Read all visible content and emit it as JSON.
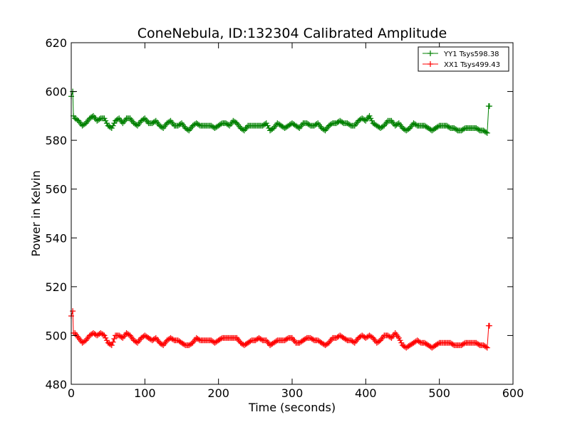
{
  "chart_data": {
    "type": "line",
    "title": "ConeNebula, ID:132304 Calibrated Amplitude",
    "xlabel": "Time (seconds)",
    "ylabel": "Power in Kelvin",
    "xlim": [
      0,
      600
    ],
    "ylim": [
      480,
      620
    ],
    "xticks": [
      "0",
      "100",
      "200",
      "300",
      "400",
      "500",
      "600"
    ],
    "yticks": [
      "480",
      "500",
      "520",
      "540",
      "560",
      "580",
      "600",
      "620"
    ],
    "grid": false,
    "legend_position": "top-right",
    "series": [
      {
        "name": "YY1 Tsys598.38",
        "color": "#008000",
        "marker": "+",
        "baseline": 586.5,
        "start_spike": 600,
        "end_spike": 594,
        "x": [
          0,
          2,
          3,
          5,
          10,
          15,
          20,
          25,
          30,
          35,
          40,
          45,
          50,
          55,
          60,
          65,
          70,
          75,
          80,
          85,
          90,
          95,
          100,
          105,
          110,
          115,
          120,
          125,
          130,
          135,
          140,
          145,
          150,
          155,
          160,
          165,
          170,
          175,
          180,
          185,
          190,
          195,
          200,
          205,
          210,
          215,
          220,
          225,
          230,
          235,
          240,
          245,
          250,
          255,
          260,
          265,
          270,
          275,
          280,
          285,
          290,
          295,
          300,
          305,
          310,
          315,
          320,
          325,
          330,
          335,
          340,
          345,
          350,
          355,
          360,
          365,
          370,
          375,
          380,
          385,
          390,
          395,
          400,
          405,
          410,
          415,
          420,
          425,
          430,
          435,
          440,
          445,
          450,
          455,
          460,
          465,
          470,
          475,
          480,
          485,
          490,
          495,
          500,
          505,
          510,
          515,
          520,
          525,
          530,
          535,
          540,
          545,
          550,
          555,
          560,
          565,
          567,
          568
        ],
        "y": [
          598,
          600,
          590,
          589,
          588,
          586,
          587,
          589,
          590,
          588,
          589,
          589,
          586,
          585,
          588,
          589,
          587,
          589,
          589,
          587,
          586,
          588,
          589,
          587,
          587,
          588,
          586,
          585,
          587,
          588,
          586,
          586,
          587,
          585,
          584,
          586,
          587,
          586,
          586,
          586,
          586,
          585,
          586,
          587,
          587,
          586,
          588,
          587,
          585,
          584,
          586,
          586,
          586,
          586,
          586,
          587,
          584,
          585,
          587,
          586,
          585,
          586,
          587,
          586,
          585,
          587,
          587,
          586,
          586,
          587,
          585,
          584,
          586,
          587,
          587,
          588,
          587,
          587,
          586,
          586,
          588,
          589,
          588,
          590,
          587,
          586,
          585,
          586,
          588,
          588,
          586,
          587,
          585,
          584,
          585,
          587,
          586,
          586,
          586,
          585,
          584,
          585,
          586,
          586,
          586,
          585,
          585,
          584,
          584,
          585,
          585,
          585,
          585,
          584,
          584,
          583,
          594,
          594
        ]
      },
      {
        "name": "XX1 Tsys499.43",
        "color": "#ff0000",
        "marker": "+",
        "baseline": 498.5,
        "start_spike": 510,
        "end_spike": 504,
        "x": [
          0,
          2,
          3,
          5,
          10,
          15,
          20,
          25,
          30,
          35,
          40,
          45,
          50,
          55,
          60,
          65,
          70,
          75,
          80,
          85,
          90,
          95,
          100,
          105,
          110,
          115,
          120,
          125,
          130,
          135,
          140,
          145,
          150,
          155,
          160,
          165,
          170,
          175,
          180,
          185,
          190,
          195,
          200,
          205,
          210,
          215,
          220,
          225,
          230,
          235,
          240,
          245,
          250,
          255,
          260,
          265,
          270,
          275,
          280,
          285,
          290,
          295,
          300,
          305,
          310,
          315,
          320,
          325,
          330,
          335,
          340,
          345,
          350,
          355,
          360,
          365,
          370,
          375,
          380,
          385,
          390,
          395,
          400,
          405,
          410,
          415,
          420,
          425,
          430,
          435,
          440,
          445,
          450,
          455,
          460,
          465,
          470,
          475,
          480,
          485,
          490,
          495,
          500,
          505,
          510,
          515,
          520,
          525,
          530,
          535,
          540,
          545,
          550,
          555,
          560,
          565,
          567,
          568
        ],
        "y": [
          508,
          510,
          501,
          501,
          499,
          497,
          498,
          500,
          501,
          500,
          501,
          500,
          497,
          496,
          500,
          500,
          499,
          501,
          500,
          498,
          497,
          499,
          500,
          499,
          498,
          499,
          497,
          496,
          498,
          499,
          498,
          498,
          497,
          496,
          496,
          497,
          499,
          498,
          498,
          498,
          498,
          497,
          498,
          499,
          499,
          499,
          499,
          499,
          497,
          496,
          497,
          498,
          498,
          499,
          498,
          498,
          496,
          497,
          498,
          498,
          498,
          499,
          499,
          497,
          497,
          498,
          499,
          499,
          498,
          498,
          497,
          496,
          497,
          499,
          499,
          500,
          499,
          498,
          498,
          497,
          499,
          500,
          499,
          500,
          499,
          497,
          498,
          500,
          500,
          499,
          501,
          499,
          496,
          495,
          496,
          497,
          498,
          497,
          497,
          496,
          495,
          496,
          497,
          497,
          497,
          497,
          496,
          496,
          496,
          497,
          497,
          497,
          497,
          496,
          496,
          495,
          504,
          504
        ]
      }
    ]
  }
}
